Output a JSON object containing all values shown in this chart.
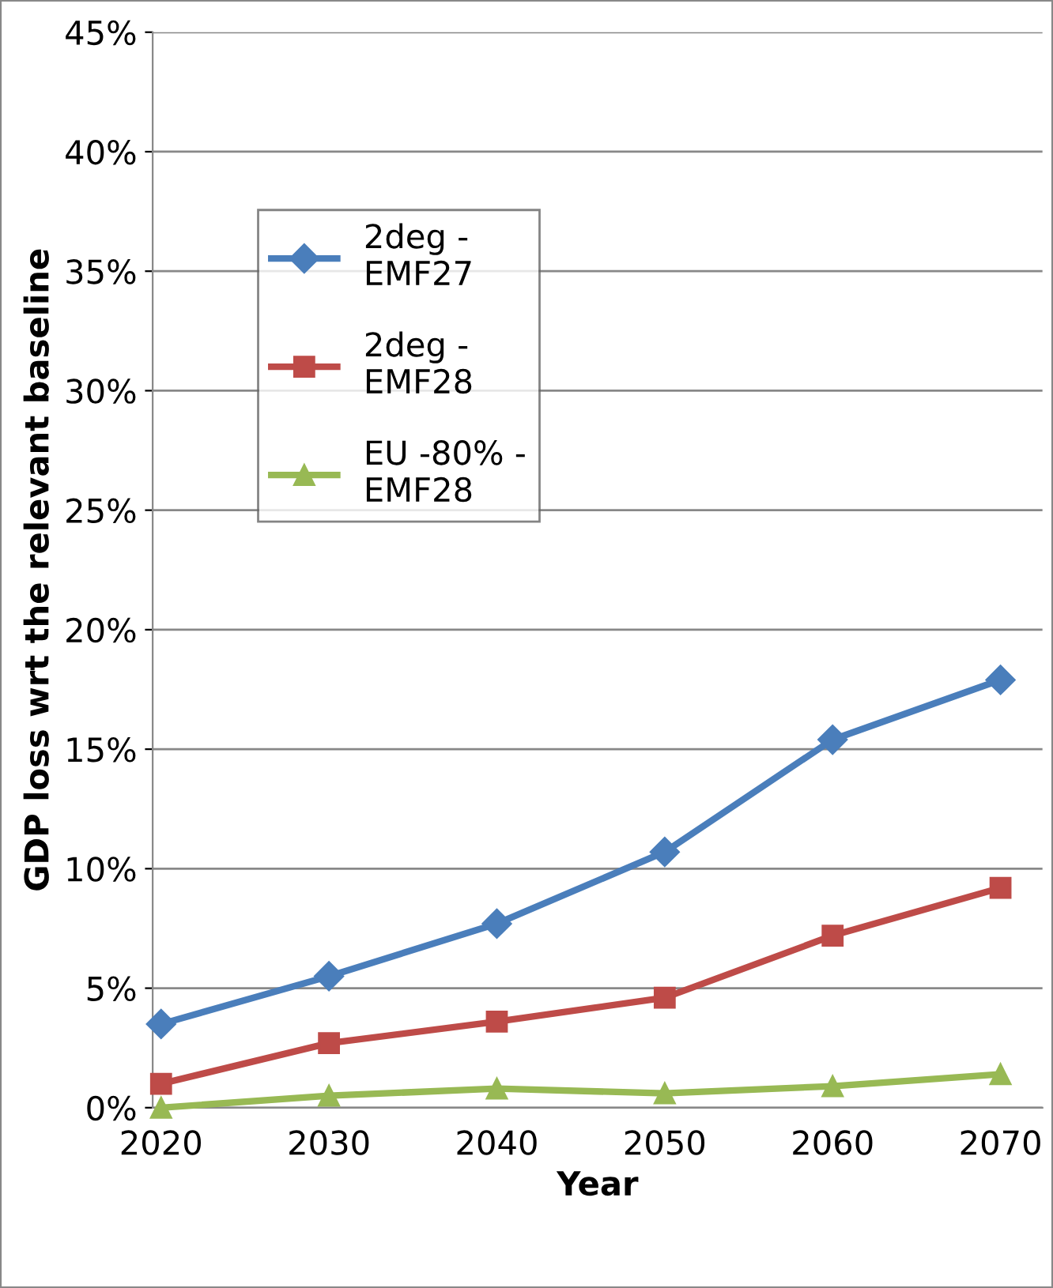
{
  "chart_data": {
    "type": "line",
    "xlabel": "Year",
    "ylabel": "GDP loss wrt the relevant baseline",
    "categories": [
      "2020",
      "2030",
      "2040",
      "2050",
      "2060",
      "2070"
    ],
    "series": [
      {
        "name": "2deg -\nEMF27",
        "color": "#4a7ebb",
        "marker": "diamond",
        "values": [
          3.5,
          5.5,
          7.7,
          10.7,
          15.4,
          17.9
        ]
      },
      {
        "name": "2deg -\nEMF28",
        "color": "#be4b48",
        "marker": "square",
        "values": [
          1.0,
          2.7,
          3.6,
          4.6,
          7.2,
          9.2
        ]
      },
      {
        "name": "EU -80% -\nEMF28",
        "color": "#98b954",
        "marker": "triangle",
        "values": [
          0.0,
          0.5,
          0.8,
          0.6,
          0.9,
          1.4
        ]
      }
    ],
    "ylim": [
      0,
      45
    ],
    "yticks": [
      {
        "value": 0,
        "label": "0%"
      },
      {
        "value": 5,
        "label": "5%"
      },
      {
        "value": 10,
        "label": "10%"
      },
      {
        "value": 15,
        "label": "15%"
      },
      {
        "value": 20,
        "label": "20%"
      },
      {
        "value": 25,
        "label": "25%"
      },
      {
        "value": 30,
        "label": "30%"
      },
      {
        "value": 35,
        "label": "35%"
      },
      {
        "value": 40,
        "label": "40%"
      },
      {
        "value": 45,
        "label": "45%"
      }
    ],
    "grid": "y",
    "legend": "top left",
    "line_style": "solid"
  }
}
